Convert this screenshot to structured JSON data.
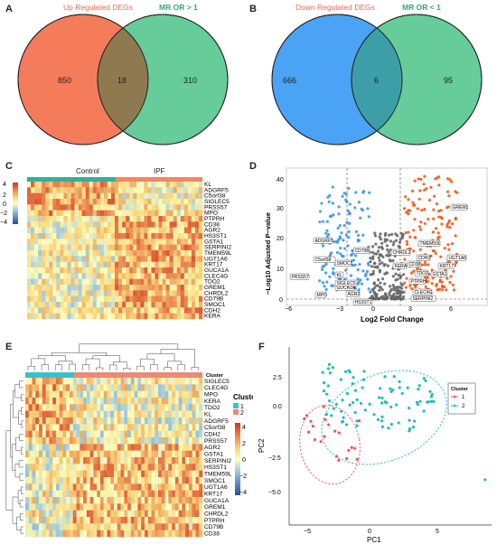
{
  "panels": {
    "A": {
      "label": "A",
      "set_left": "Up Regulated DEGs",
      "set_right": "MR OR > 1",
      "only_left": "850",
      "overlap": "18",
      "only_right": "310",
      "colors": {
        "left": "#f47c5b",
        "right": "#66cc99",
        "overlap": "#8f7a4f",
        "left_label": "#ea6a5a",
        "right_label": "#3aa66c"
      }
    },
    "B": {
      "label": "B",
      "set_left": "Down Regulated DEGs",
      "set_right": "MR OR < 1",
      "only_left": "666",
      "overlap": "6",
      "only_right": "95",
      "colors": {
        "left": "#4aa3f5",
        "right": "#66cc99",
        "overlap": "#3c9fa8",
        "left_label": "#ea6a5a",
        "right_label": "#3aa66c"
      }
    },
    "C": {
      "label": "C",
      "group_labels": [
        "Control",
        "IPF"
      ],
      "group_colors": [
        "#2bb39a",
        "#ee8866"
      ],
      "legend_ticks": [
        "4",
        "2",
        "0",
        "−2",
        "−4"
      ],
      "genes": [
        "KL",
        "ADGRF5",
        "C5orf38",
        "SIGLEC5",
        "PRSS57",
        "MPO",
        "PTPRH",
        "CD38",
        "AGR2",
        "HS3ST1",
        "GSTA1",
        "SERPINI2",
        "TMEM59L",
        "UGT1A6",
        "KRT17",
        "GUCA1A",
        "CLEC4G",
        "TDO2",
        "GREM1",
        "CHRDL2",
        "CD79B",
        "SMOC1",
        "CDH2",
        "KERA"
      ]
    },
    "D": {
      "label": "D",
      "xlabel": "Log2 Fold Change",
      "ylabel": "−Log10 Adjusted P−value",
      "x_ticks": [
        "−6",
        "−3",
        "0",
        "3",
        "6"
      ],
      "y_ticks": [
        "0",
        "10",
        "20",
        "30",
        "40"
      ],
      "gene_labels_left": [
        "ADGRF5",
        "C5orf38",
        "PRSS57",
        "KL",
        "SMOC1",
        "MPO",
        "GUCA1A",
        "SIGLEC5",
        "AGR2",
        "HS3ST1",
        "CD79B"
      ],
      "gene_labels_right": [
        "GREM1",
        "CHRDL2",
        "TMEM59L",
        "CDH2",
        "UGT1A6",
        "KRT17",
        "KERA",
        "CD38",
        "TDO2",
        "GSTA1",
        "PTPRH",
        "CLEC4G",
        "SERPINI2"
      ]
    },
    "E": {
      "label": "E",
      "cluster_title": "Cluster",
      "cluster_values": [
        "1",
        "2"
      ],
      "cluster_colors": [
        "#3cc0c8",
        "#ee8877"
      ],
      "legend_ticks": [
        "4",
        "2",
        "0",
        "−2",
        "−4"
      ],
      "genes": [
        "SIGLEC5",
        "CLEC4G",
        "MPO",
        "KERA",
        "TDO2",
        "KL",
        "ADGRF5",
        "C5orf38",
        "CDH2",
        "PRSS57",
        "AGR2",
        "GSTA1",
        "SERPINI2",
        "HS3ST1",
        "TMEM59L",
        "SMOC1",
        "UGT1A6",
        "KRT17",
        "GUCA1A",
        "GREM1",
        "CHRDL2",
        "PTPRH",
        "CD79B",
        "CD38"
      ]
    },
    "F": {
      "label": "F",
      "xlabel": "PC1",
      "ylabel": "PC2",
      "x_ticks": [
        "−5",
        "0",
        "5"
      ],
      "y_ticks": [
        "2.5",
        "0.0",
        "−2.5",
        "−5.0"
      ],
      "legend_title": "Cluster",
      "legend_items": [
        "1",
        "2"
      ],
      "colors": [
        "#ee5555",
        "#22bbbb"
      ]
    }
  }
}
